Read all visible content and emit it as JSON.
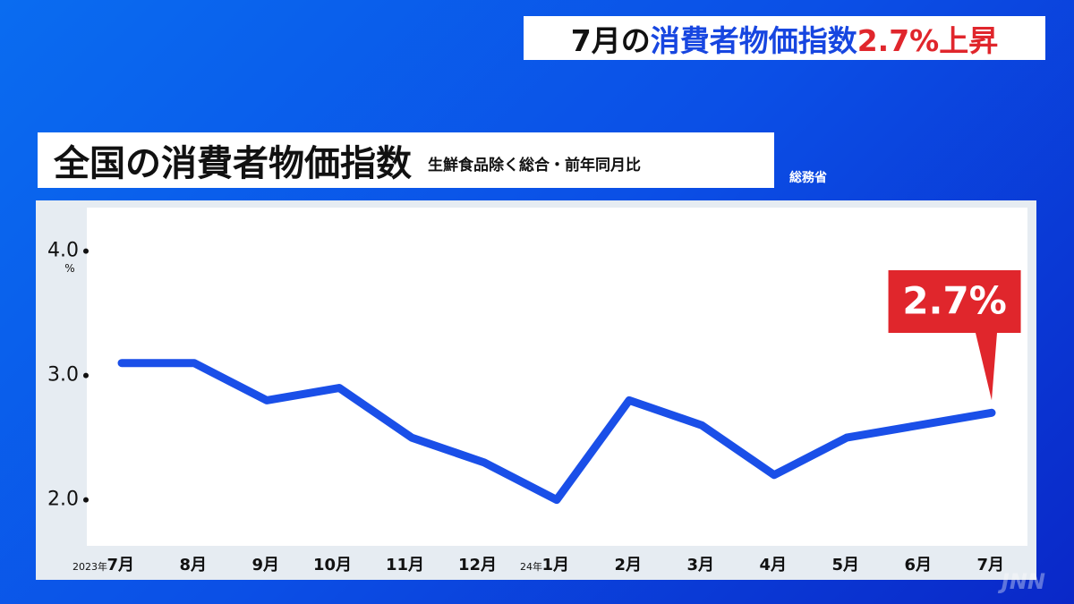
{
  "headline": [
    {
      "text": "7月の",
      "color": "#111111"
    },
    {
      "text": "消費者物価指数",
      "color": "#1746e0"
    },
    {
      "text": "2.7%上昇",
      "color": "#e0262c"
    }
  ],
  "chart_data": {
    "type": "line",
    "title": "全国の消費者物価指数",
    "subtitle": "生鮮食品除く総合・前年同月比",
    "source": "総務省",
    "y_unit": "%",
    "watermark": "JNN",
    "categories": [
      "7月",
      "8月",
      "9月",
      "10月",
      "11月",
      "12月",
      "1月",
      "2月",
      "3月",
      "4月",
      "5月",
      "6月",
      "7月"
    ],
    "category_prefixes": [
      "2023年",
      null,
      null,
      null,
      null,
      null,
      "24年",
      null,
      null,
      null,
      null,
      null,
      null
    ],
    "series": [
      {
        "name": "消費者物価指数",
        "color": "#1a4fe8",
        "values": [
          3.1,
          3.1,
          2.8,
          2.9,
          2.5,
          2.3,
          2.0,
          2.8,
          2.6,
          2.2,
          2.5,
          2.6,
          2.7
        ],
        "value_labels": [
          null,
          null,
          null,
          null,
          null,
          null,
          null,
          null,
          null,
          null,
          null,
          null,
          "2.7%"
        ]
      }
    ],
    "ylim": [
      1.63,
      4.35
    ],
    "yticks": [
      {
        "value": 2.0,
        "label": "2.0"
      },
      {
        "value": 3.0,
        "label": "3.0"
      },
      {
        "value": 4.0,
        "label": "4.0"
      }
    ],
    "callout_color": "#e0262c"
  }
}
